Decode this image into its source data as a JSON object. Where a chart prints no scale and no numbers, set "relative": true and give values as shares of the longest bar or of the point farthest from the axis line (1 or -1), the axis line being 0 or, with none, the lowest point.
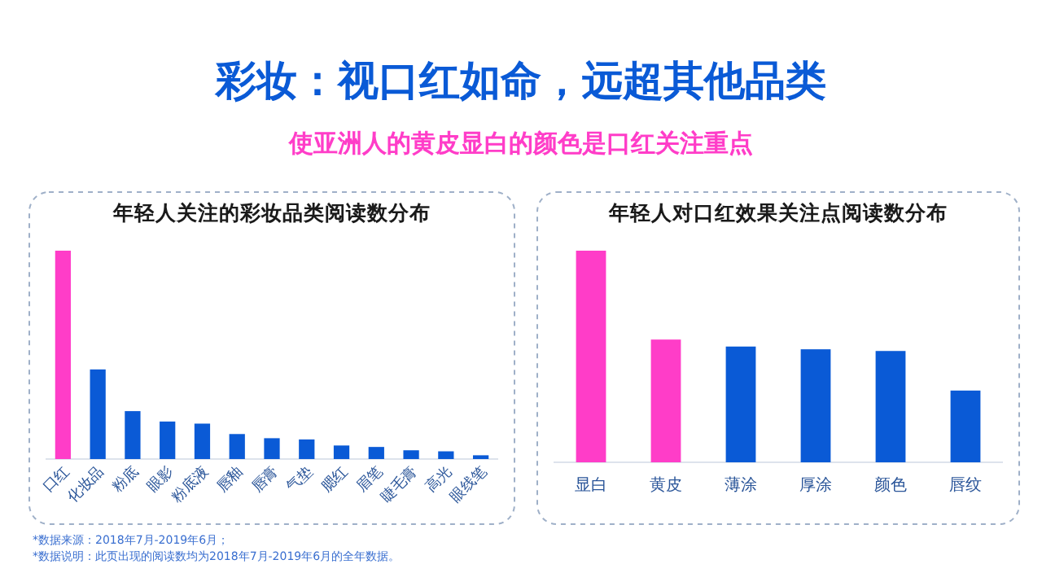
{
  "chart_data": [
    {
      "type": "other",
      "title": "彩妆：视口红如命，远超其他品类",
      "subtitle": "使亚洲人的黄皮显白的颜色是口红关注重点",
      "annotations": [
        "*数据来源：2018年7月-2019年6月；",
        "*数据说明：此页出现的阅读数均为2018年7月-2019年6月的全年数据。"
      ]
    },
    {
      "type": "bar",
      "relative": true,
      "title": "年轻人关注的彩妆品类阅读数分布",
      "categories": [
        "口红",
        "化妆品",
        "粉底",
        "眼影",
        "粉底液",
        "唇釉",
        "唇膏",
        "气垫",
        "腮红",
        "眉笔",
        "睫毛膏",
        "高光",
        "眼线笔"
      ],
      "values": [
        1,
        0.43,
        0.23,
        0.18,
        0.17,
        0.12,
        0.1,
        0.094,
        0.065,
        0.058,
        0.042,
        0.037,
        0.018
      ],
      "colors": [
        "#ff3dc8",
        "#0a5ad6",
        "#0a5ad6",
        "#0a5ad6",
        "#0a5ad6",
        "#0a5ad6",
        "#0a5ad6",
        "#0a5ad6",
        "#0a5ad6",
        "#0a5ad6",
        "#0a5ad6",
        "#0a5ad6",
        "#0a5ad6"
      ]
    },
    {
      "type": "bar",
      "relative": true,
      "title": "年轻人对口红效果关注点阅读数分布",
      "categories": [
        "显白",
        "黄皮",
        "薄涂",
        "厚涂",
        "颜色",
        "唇纹"
      ],
      "values": [
        1,
        0.58,
        0.547,
        0.534,
        0.526,
        0.339
      ],
      "colors": [
        "#ff3dc8",
        "#ff3dc8",
        "#0a5ad6",
        "#0a5ad6",
        "#0a5ad6",
        "#0a5ad6"
      ]
    }
  ]
}
